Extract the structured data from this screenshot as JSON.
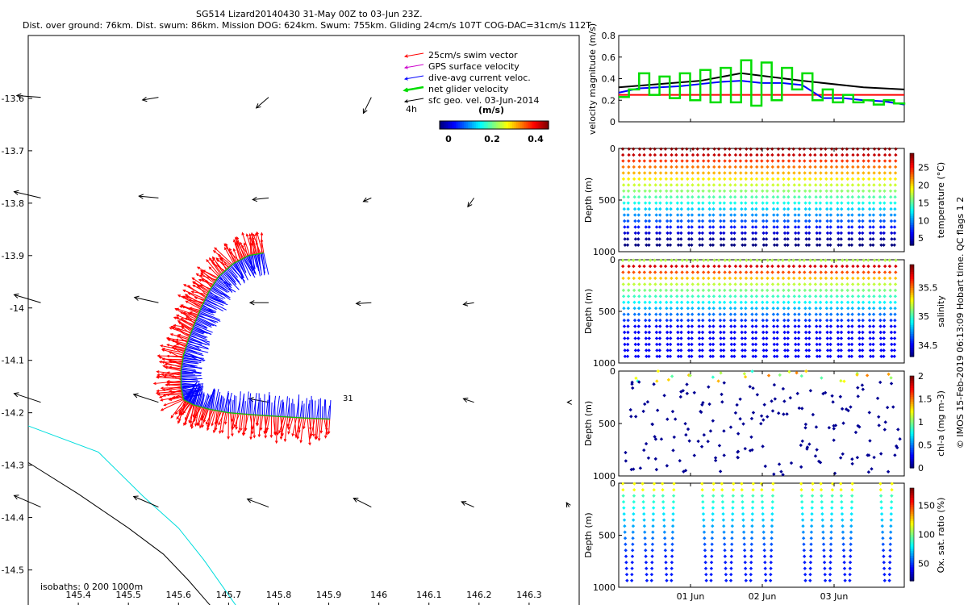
{
  "title": {
    "line1": "SG514 Lizard20140430 31-May 00Z to 03-Jun 23Z.",
    "line2": "Dist. over ground: 76km. Dist. swum: 86km. Mission DOG: 624km. Swum: 755km. Gliding 24cm/s 107T COG-DAC=31cm/s 112T"
  },
  "watermark": "© IMOS 15-Feb-2019 06:13:09 Hobart time. QC flags 1  2",
  "colors": {
    "swim": "#ff0000",
    "gps": "#cc00cc",
    "dac": "#0000ff",
    "net": "#00dd00",
    "sfc": "#000000",
    "isobath200": "#00dddd",
    "isobath1000": "#000000"
  },
  "chart_data": [
    {
      "type": "map",
      "name": "track-map",
      "xlim": [
        145.3,
        146.4
      ],
      "ylim": [
        -14.57,
        -13.48
      ],
      "xticks": [
        "145.4",
        "145.5",
        "145.6",
        "145.7",
        "145.8",
        "145.9",
        "146",
        "146.1",
        "146.2",
        "146.3"
      ],
      "yticks": [
        "-13.6",
        "-13.7",
        "-13.8",
        "-13.9",
        "-14",
        "-14.1",
        "-14.2",
        "-14.3",
        "-14.4",
        "-14.5"
      ],
      "legend": [
        {
          "label": "25cm/s swim vector",
          "color": "#ff0000"
        },
        {
          "label": "GPS surface velocity",
          "color": "#cc00cc"
        },
        {
          "label": "dive-avg current veloc.",
          "color": "#0000ff"
        },
        {
          "label": "net glider velocity",
          "color": "#00dd00"
        },
        {
          "label": "sfc geo. vel. 03-Jun-2014",
          "color": "#000000"
        }
      ],
      "vector_scale_label": "4h",
      "colorbar": {
        "title": "(m/s)",
        "ticks": [
          "0",
          "0.2",
          "0.4"
        ],
        "range": [
          0,
          0.5
        ]
      },
      "isobaths_label": "isobaths:  0    200   1000m",
      "track_end_label": "31",
      "track": [
        [
          145.902,
          -14.212
        ],
        [
          145.85,
          -14.21
        ],
        [
          145.8,
          -14.207
        ],
        [
          145.75,
          -14.204
        ],
        [
          145.7,
          -14.2
        ],
        [
          145.66,
          -14.193
        ],
        [
          145.63,
          -14.185
        ],
        [
          145.61,
          -14.175
        ],
        [
          145.605,
          -14.15
        ],
        [
          145.605,
          -14.12
        ],
        [
          145.61,
          -14.09
        ],
        [
          145.62,
          -14.06
        ],
        [
          145.632,
          -14.03
        ],
        [
          145.645,
          -14.0
        ],
        [
          145.66,
          -13.97
        ],
        [
          145.68,
          -13.94
        ],
        [
          145.71,
          -13.915
        ],
        [
          145.74,
          -13.9
        ],
        [
          145.77,
          -13.895
        ]
      ],
      "isobath_200": [
        [
          145.3,
          -14.225
        ],
        [
          145.44,
          -14.275
        ],
        [
          145.53,
          -14.36
        ],
        [
          145.6,
          -14.42
        ],
        [
          145.65,
          -14.48
        ],
        [
          145.72,
          -14.575
        ]
      ],
      "isobath_1000": [
        [
          145.3,
          -14.295
        ],
        [
          145.4,
          -14.355
        ],
        [
          145.5,
          -14.42
        ],
        [
          145.57,
          -14.47
        ],
        [
          145.62,
          -14.52
        ],
        [
          145.67,
          -14.575
        ]
      ],
      "sfc_vectors": [
        {
          "lon": 145.325,
          "lat": -13.598,
          "u": 0.27,
          "v": 0.02
        },
        {
          "lon": 145.56,
          "lat": -13.598,
          "u": 0.18,
          "v": -0.03
        },
        {
          "lon": 145.78,
          "lat": -13.598,
          "u": 0.14,
          "v": -0.12
        },
        {
          "lon": 145.985,
          "lat": -13.598,
          "u": 0.09,
          "v": -0.18
        },
        {
          "lon": 145.325,
          "lat": -13.79,
          "u": 0.3,
          "v": 0.07
        },
        {
          "lon": 145.56,
          "lat": -13.79,
          "u": 0.22,
          "v": 0.02
        },
        {
          "lon": 145.78,
          "lat": -13.79,
          "u": 0.18,
          "v": -0.02
        },
        {
          "lon": 145.985,
          "lat": -13.79,
          "u": 0.09,
          "v": -0.04
        },
        {
          "lon": 146.19,
          "lat": -13.79,
          "u": 0.07,
          "v": -0.1
        },
        {
          "lon": 145.325,
          "lat": -13.99,
          "u": 0.3,
          "v": 0.09
        },
        {
          "lon": 145.56,
          "lat": -13.99,
          "u": 0.27,
          "v": 0.06
        },
        {
          "lon": 145.78,
          "lat": -13.99,
          "u": 0.21,
          "v": 0.0
        },
        {
          "lon": 145.985,
          "lat": -13.99,
          "u": 0.17,
          "v": -0.01
        },
        {
          "lon": 146.19,
          "lat": -13.99,
          "u": 0.12,
          "v": -0.02
        },
        {
          "lon": 145.325,
          "lat": -14.18,
          "u": 0.3,
          "v": 0.1
        },
        {
          "lon": 145.56,
          "lat": -14.18,
          "u": 0.28,
          "v": 0.09
        },
        {
          "lon": 145.78,
          "lat": -14.18,
          "u": 0.22,
          "v": 0.04
        },
        {
          "lon": 146.19,
          "lat": -14.18,
          "u": 0.12,
          "v": 0.04
        },
        {
          "lon": 146.38,
          "lat": -14.18,
          "u": 0.02,
          "v": 0.0
        },
        {
          "lon": 145.325,
          "lat": -14.38,
          "u": 0.3,
          "v": 0.13
        },
        {
          "lon": 145.56,
          "lat": -14.38,
          "u": 0.28,
          "v": 0.12
        },
        {
          "lon": 145.78,
          "lat": -14.38,
          "u": 0.24,
          "v": 0.09
        },
        {
          "lon": 145.985,
          "lat": -14.38,
          "u": 0.2,
          "v": 0.1
        },
        {
          "lon": 146.19,
          "lat": -14.38,
          "u": 0.14,
          "v": 0.06
        },
        {
          "lon": 146.38,
          "lat": -14.38,
          "u": 0.03,
          "v": 0.05
        }
      ]
    },
    {
      "type": "line",
      "name": "velocity-magnitude",
      "ylabel": "velocity magnitude (m/s)",
      "ylim": [
        0,
        0.8
      ],
      "yticks": [
        "0",
        "0.2",
        "0.4",
        "0.6",
        "0.8"
      ],
      "series": [
        {
          "name": "sfc geo",
          "color": "#000000",
          "points": [
            [
              0,
              0.32
            ],
            [
              4,
              0.38
            ],
            [
              6,
              0.45
            ],
            [
              9,
              0.38
            ],
            [
              12,
              0.32
            ],
            [
              14,
              0.3
            ]
          ]
        },
        {
          "name": "swim",
          "color": "#ff0000",
          "points": [
            [
              0,
              0.25
            ],
            [
              14,
              0.25
            ]
          ]
        },
        {
          "name": "dac",
          "color": "#0000ff",
          "points": [
            [
              0,
              0.27
            ],
            [
              1,
              0.31
            ],
            [
              2,
              0.32
            ],
            [
              3,
              0.33
            ],
            [
              4,
              0.35
            ],
            [
              5,
              0.37
            ],
            [
              6,
              0.38
            ],
            [
              7,
              0.36
            ],
            [
              8,
              0.36
            ],
            [
              9,
              0.34
            ],
            [
              10,
              0.22
            ],
            [
              11,
              0.22
            ],
            [
              12,
              0.2
            ],
            [
              13,
              0.19
            ],
            [
              14,
              0.16
            ]
          ]
        },
        {
          "name": "net",
          "color": "#00dd00",
          "points": [
            [
              0,
              0.23
            ],
            [
              0.5,
              0.3
            ],
            [
              1.0,
              0.45
            ],
            [
              1.5,
              0.25
            ],
            [
              2,
              0.42
            ],
            [
              2.5,
              0.22
            ],
            [
              3,
              0.45
            ],
            [
              3.5,
              0.2
            ],
            [
              4,
              0.48
            ],
            [
              4.5,
              0.18
            ],
            [
              5,
              0.5
            ],
            [
              5.5,
              0.18
            ],
            [
              6,
              0.57
            ],
            [
              6.5,
              0.15
            ],
            [
              7,
              0.55
            ],
            [
              7.5,
              0.2
            ],
            [
              8,
              0.5
            ],
            [
              8.5,
              0.3
            ],
            [
              9,
              0.45
            ],
            [
              9.5,
              0.2
            ],
            [
              10,
              0.3
            ],
            [
              10.5,
              0.18
            ],
            [
              11,
              0.25
            ],
            [
              11.5,
              0.18
            ],
            [
              12,
              0.2
            ],
            [
              12.5,
              0.16
            ],
            [
              13,
              0.2
            ],
            [
              13.5,
              0.17
            ],
            [
              14,
              0.16
            ]
          ]
        }
      ]
    },
    {
      "type": "scatter",
      "name": "temperature-section",
      "ylabel": "Depth (m)",
      "clabel": "temperature (°C)",
      "cticks": [
        "5",
        "10",
        "15",
        "20",
        "25"
      ],
      "crange": [
        3,
        29
      ],
      "yticks": [
        "0",
        "500",
        "1000"
      ],
      "ylim": [
        0,
        1000
      ]
    },
    {
      "type": "scatter",
      "name": "salinity-section",
      "ylabel": "Depth (m)",
      "clabel": "salinity",
      "cticks": [
        "34.5",
        "35",
        "35.5"
      ],
      "crange": [
        34.3,
        35.9
      ],
      "yticks": [
        "0",
        "500",
        "1000"
      ],
      "ylim": [
        0,
        1000
      ]
    },
    {
      "type": "scatter",
      "name": "chla-section",
      "ylabel": "Depth (m)",
      "clabel": "chl-a (mg m-3)",
      "cticks": [
        "0",
        "0.5",
        "1",
        "1.5",
        "2"
      ],
      "crange": [
        0,
        2
      ],
      "yticks": [
        "0",
        "500",
        "1000"
      ],
      "ylim": [
        0,
        1000
      ]
    },
    {
      "type": "scatter",
      "name": "oxygen-section",
      "ylabel": "Depth (m)",
      "clabel": "Ox. sat. ratio (%)",
      "cticks": [
        "50",
        "100",
        "150"
      ],
      "crange": [
        20,
        180
      ],
      "yticks": [
        "0",
        "500",
        "1000"
      ],
      "ylim": [
        0,
        1000
      ],
      "xticks": [
        "01 Jun",
        "02 Jun",
        "03 Jun"
      ]
    }
  ]
}
